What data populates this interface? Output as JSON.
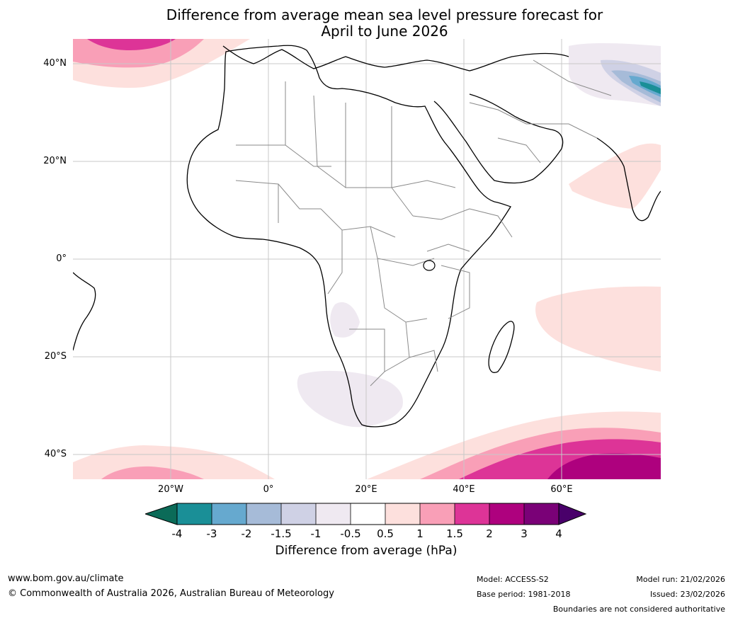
{
  "title": {
    "line1": "Difference from average mean sea level pressure forecast for",
    "line2": "April to June 2026"
  },
  "map": {
    "lat_labels": [
      "40°N",
      "20°N",
      "0°",
      "20°S",
      "40°S"
    ],
    "lon_labels": [
      "20°W",
      "0°",
      "20°E",
      "40°E",
      "60°E"
    ]
  },
  "colorbar": {
    "label": "Difference from average (hPa)",
    "ticks": [
      "-4",
      "-3",
      "-2",
      "-1.5",
      "-1",
      "-0.5",
      "0.5",
      "1",
      "1.5",
      "2",
      "3",
      "4"
    ],
    "colors": {
      "lt_neg4": "#0b6b58",
      "neg4_neg3": "#1a8f97",
      "neg3_neg2": "#66a9cf",
      "neg2_neg1_5": "#a6bbd8",
      "neg1_5_neg1": "#cfd1e5",
      "neg1_neg0_5": "#efe9f1",
      "neg0_5_0_5": "#ffffff",
      "p0_5_p1": "#fde0dd",
      "p1_p1_5": "#f99fb7",
      "p1_5_p2": "#dd3497",
      "p2_p3": "#ae017e",
      "p3_p4": "#7a0177",
      "gt_p4": "#49006a"
    }
  },
  "footer": {
    "url": "www.bom.gov.au/climate",
    "copyright": "© Commonwealth of Australia 2026, Australian Bureau of Meteorology",
    "model": "Model: ACCESS-S2",
    "base_period": "Base period: 1981-2018",
    "model_run": "Model run: 21/02/2026",
    "issued": "Issued: 23/02/2026",
    "boundaries_note": "Boundaries are not considered authoritative"
  }
}
